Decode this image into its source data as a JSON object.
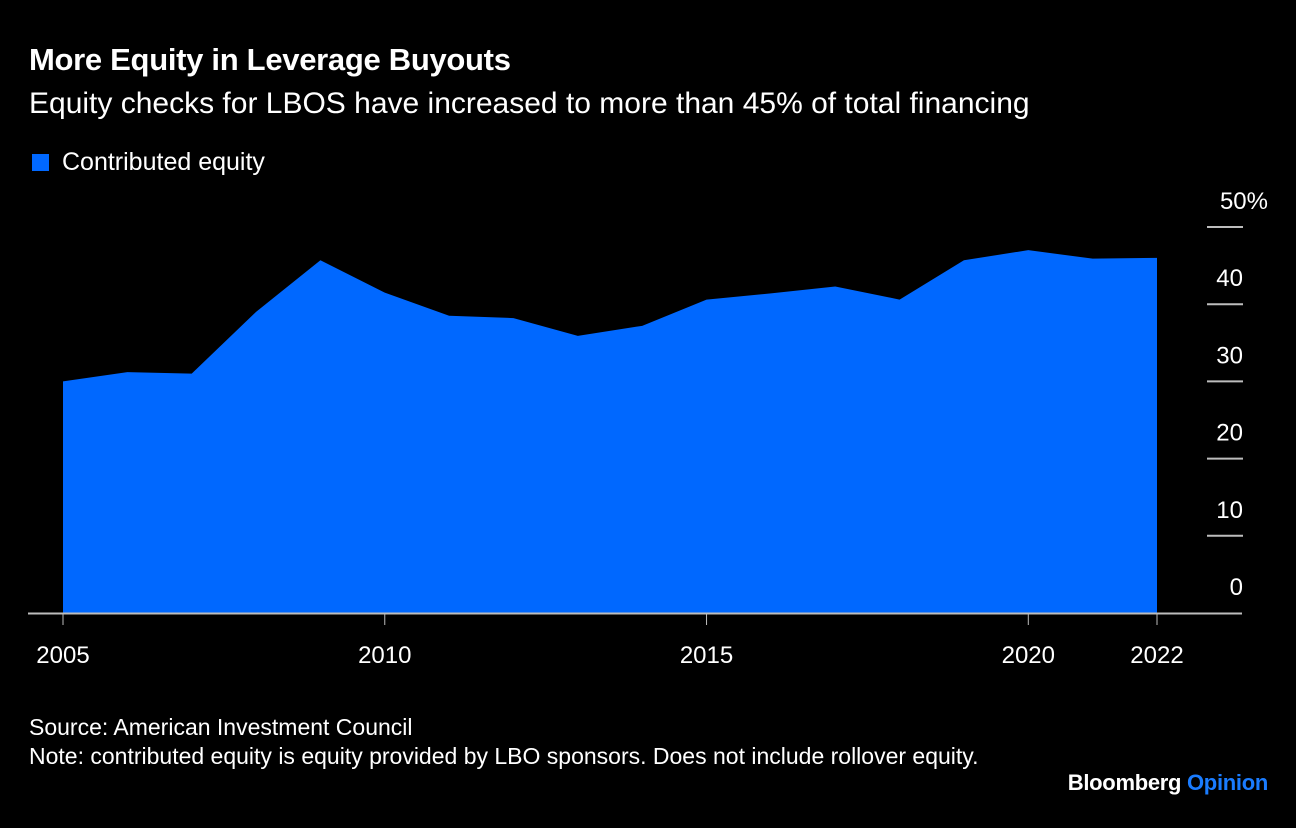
{
  "header": {
    "title": "More Equity in Leverage Buyouts",
    "subtitle": "Equity checks for LBOS have increased to more than 45% of total financing"
  },
  "legend": {
    "label": "Contributed equity",
    "color": "#0068ff"
  },
  "footer": {
    "source": "Source: American Investment Council",
    "note": "Note: contributed equity is equity provided by LBO sponsors. Does not include rollover equity."
  },
  "brand": {
    "name": "Bloomberg",
    "section": "Opinion",
    "section_color": "#1a7cff"
  },
  "chart_data": {
    "type": "area",
    "title": "More Equity in Leverage Buyouts",
    "subtitle": "Equity checks for LBOS have increased to more than 45% of total financing",
    "xlabel": "",
    "ylabel": "",
    "x": [
      2005,
      2006,
      2007,
      2008,
      2009,
      2010,
      2011,
      2012,
      2013,
      2014,
      2015,
      2016,
      2017,
      2018,
      2019,
      2020,
      2021,
      2022
    ],
    "series": [
      {
        "name": "Contributed equity",
        "color": "#0068ff",
        "values": [
          30.0,
          31.2,
          31.0,
          39.0,
          45.7,
          41.5,
          38.5,
          38.2,
          35.9,
          37.2,
          40.6,
          41.4,
          42.3,
          40.6,
          45.7,
          47.0,
          45.9,
          46.0
        ]
      }
    ],
    "xlim": [
      2005,
      2022
    ],
    "ylim": [
      0,
      50
    ],
    "x_ticks": [
      2005,
      2010,
      2015,
      2020,
      2022
    ],
    "x_tick_labels": [
      "2005",
      "2010",
      "2015",
      "2020",
      "2022"
    ],
    "y_ticks": [
      0,
      10,
      20,
      30,
      40,
      50
    ],
    "y_tick_labels": [
      "0",
      "10",
      "20",
      "30",
      "40",
      "50%"
    ],
    "y_axis_position": "right",
    "grid": false,
    "legend_position": "top-left"
  }
}
